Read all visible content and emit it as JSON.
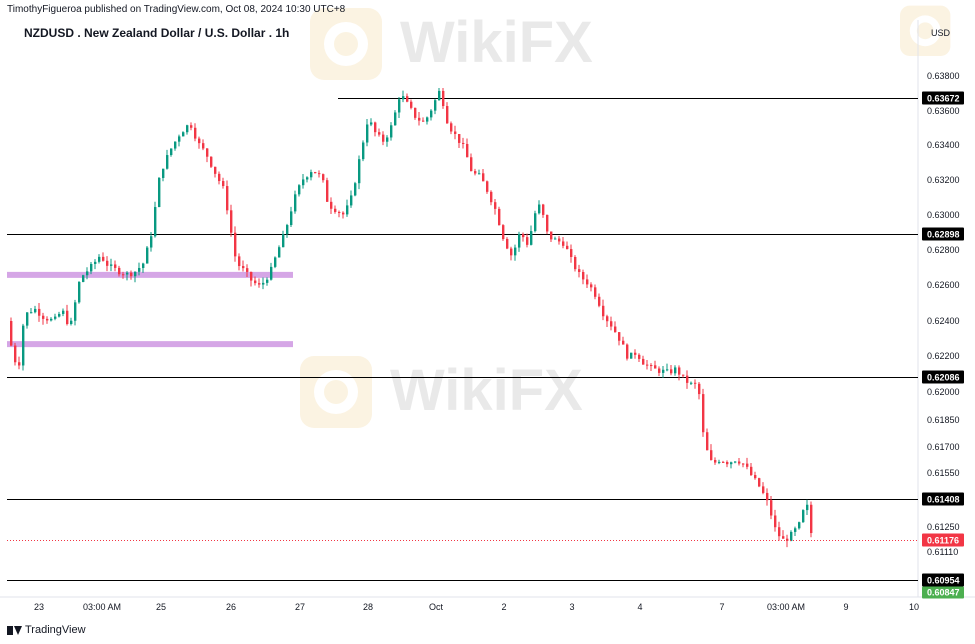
{
  "header": {
    "published": "TimothyFigueroa published on TradingView.com, Oct 08, 2024 10:30 UTC+8",
    "title": "NZDUSD . New Zealand Dollar / U.S. Dollar . 1h",
    "brand": "TradingView",
    "logo_text": "WikiFX"
  },
  "chart_data": {
    "type": "candlestick",
    "symbol": "NZDUSD",
    "timeframe": "1h",
    "currency_label": "USD",
    "y_ticks": [
      "0.63800",
      "0.63600",
      "0.63400",
      "0.63200",
      "0.63000",
      "0.62800",
      "0.62600",
      "0.62400",
      "0.62200",
      "0.62000",
      "0.61850",
      "0.61700",
      "0.61550",
      "0.61250",
      "0.61110"
    ],
    "x_ticks": [
      "23",
      "03:00 AM",
      "25",
      "26",
      "27",
      "28",
      "Oct",
      "2",
      "3",
      "4",
      "7",
      "03:00 AM",
      "9",
      "10"
    ],
    "horizontal_levels": [
      "0.63672",
      "0.62898",
      "0.62086",
      "0.61408",
      "0.60954"
    ],
    "zones": [
      {
        "from": 0.62655,
        "to": 0.62675
      },
      {
        "from": 0.62255,
        "to": 0.62285
      }
    ],
    "current_price": "0.61176",
    "bid_price": "0.60847",
    "colors": {
      "up": "#089981",
      "down": "#f23645",
      "zone": "#d5a6e6",
      "level": "#000000",
      "current": "#f23645",
      "bid": "#4caf50"
    },
    "price_path": [
      [
        0,
        0.624
      ],
      [
        8,
        0.6224
      ],
      [
        14,
        0.6211
      ],
      [
        20,
        0.6243
      ],
      [
        30,
        0.6247
      ],
      [
        40,
        0.6242
      ],
      [
        50,
        0.624
      ],
      [
        58,
        0.6246
      ],
      [
        66,
        0.6236
      ],
      [
        76,
        0.6264
      ],
      [
        88,
        0.6271
      ],
      [
        96,
        0.6277
      ],
      [
        104,
        0.6271
      ],
      [
        114,
        0.6268
      ],
      [
        124,
        0.6266
      ],
      [
        132,
        0.6268
      ],
      [
        140,
        0.6273
      ],
      [
        148,
        0.6292
      ],
      [
        156,
        0.6324
      ],
      [
        166,
        0.6337
      ],
      [
        176,
        0.6347
      ],
      [
        186,
        0.6353
      ],
      [
        194,
        0.6341
      ],
      [
        202,
        0.6335
      ],
      [
        212,
        0.6323
      ],
      [
        220,
        0.6314
      ],
      [
        226,
        0.6294
      ],
      [
        232,
        0.6273
      ],
      [
        240,
        0.6268
      ],
      [
        248,
        0.6262
      ],
      [
        256,
        0.6259
      ],
      [
        266,
        0.6267
      ],
      [
        274,
        0.628
      ],
      [
        282,
        0.6293
      ],
      [
        290,
        0.6309
      ],
      [
        298,
        0.632
      ],
      [
        308,
        0.6326
      ],
      [
        318,
        0.6321
      ],
      [
        324,
        0.6306
      ],
      [
        332,
        0.6303
      ],
      [
        340,
        0.63
      ],
      [
        348,
        0.6311
      ],
      [
        356,
        0.6334
      ],
      [
        364,
        0.6356
      ],
      [
        372,
        0.6346
      ],
      [
        380,
        0.6342
      ],
      [
        388,
        0.6352
      ],
      [
        396,
        0.637
      ],
      [
        404,
        0.6363
      ],
      [
        412,
        0.6356
      ],
      [
        420,
        0.6353
      ],
      [
        428,
        0.6362
      ],
      [
        436,
        0.6372
      ],
      [
        444,
        0.6352
      ],
      [
        452,
        0.6345
      ],
      [
        460,
        0.6338
      ],
      [
        468,
        0.6324
      ],
      [
        476,
        0.6322
      ],
      [
        484,
        0.6313
      ],
      [
        492,
        0.6302
      ],
      [
        500,
        0.6286
      ],
      [
        508,
        0.6276
      ],
      [
        516,
        0.6291
      ],
      [
        524,
        0.6283
      ],
      [
        530,
        0.63
      ],
      [
        536,
        0.6306
      ],
      [
        544,
        0.6288
      ],
      [
        552,
        0.6286
      ],
      [
        560,
        0.6284
      ],
      [
        568,
        0.6273
      ],
      [
        576,
        0.6265
      ],
      [
        584,
        0.6261
      ],
      [
        592,
        0.6254
      ],
      [
        600,
        0.6243
      ],
      [
        608,
        0.6237
      ],
      [
        616,
        0.6229
      ],
      [
        624,
        0.6219
      ],
      [
        632,
        0.6222
      ],
      [
        640,
        0.6216
      ],
      [
        648,
        0.6213
      ],
      [
        656,
        0.6212
      ],
      [
        664,
        0.6211
      ],
      [
        672,
        0.6213
      ],
      [
        680,
        0.6207
      ],
      [
        688,
        0.6204
      ],
      [
        694,
        0.6204
      ],
      [
        700,
        0.6172
      ],
      [
        708,
        0.616
      ],
      [
        716,
        0.6163
      ],
      [
        724,
        0.6161
      ],
      [
        732,
        0.6163
      ],
      [
        740,
        0.616
      ],
      [
        748,
        0.6153
      ],
      [
        756,
        0.6147
      ],
      [
        764,
        0.6138
      ],
      [
        772,
        0.6122
      ],
      [
        780,
        0.6117
      ],
      [
        788,
        0.6121
      ],
      [
        796,
        0.6127
      ],
      [
        802,
        0.614
      ],
      [
        808,
        0.6118
      ]
    ]
  }
}
